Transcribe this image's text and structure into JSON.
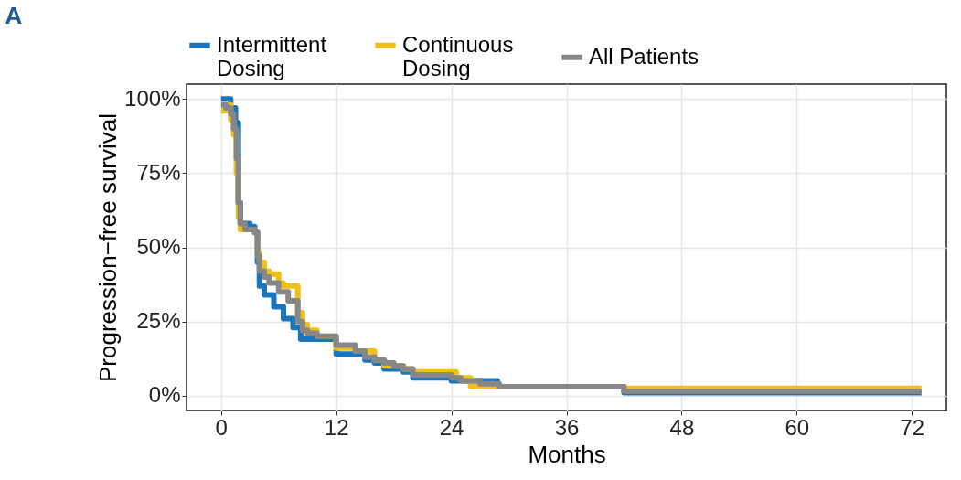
{
  "chart_data": {
    "type": "step",
    "title": "A",
    "xlabel": "Months",
    "ylabel": "Progression−free survival",
    "legend": "top",
    "grid": true,
    "line_style": "solid",
    "xlim": [
      -3.6,
      75.6
    ],
    "xticks": [
      0,
      12,
      24,
      36,
      48,
      60,
      72
    ],
    "ylim": [
      -5,
      105
    ],
    "yticks": [
      {
        "value": 0,
        "label": "0%"
      },
      {
        "value": 25,
        "label": "25%"
      },
      {
        "value": 50,
        "label": "50%"
      },
      {
        "value": 75,
        "label": "75%"
      },
      {
        "value": 100,
        "label": "100%"
      }
    ],
    "series": [
      {
        "name": "Intermittent\nDosing",
        "color": "#1a75bc",
        "x": [
          0,
          1,
          1.5,
          1.8,
          2,
          3,
          3.5,
          3.8,
          4,
          4.5,
          5.5,
          6.5,
          7.5,
          8.3,
          12,
          15,
          16,
          17,
          19,
          20,
          24,
          28.8,
          42,
          73
        ],
        "values": [
          100,
          97,
          92,
          65,
          58,
          57,
          55,
          45,
          37,
          34,
          30,
          26,
          23,
          19,
          14,
          12,
          11,
          9,
          8,
          6,
          5,
          3,
          1,
          1
        ]
      },
      {
        "name": "Continuous\nDosing",
        "color": "#f0c01a",
        "x": [
          0,
          0.5,
          1,
          1.3,
          1.6,
          1.8,
          2,
          3,
          3.5,
          3.8,
          4,
          4.5,
          5,
          6,
          6.5,
          7.5,
          8,
          8.5,
          9,
          10,
          12,
          14,
          16,
          17,
          19,
          20,
          24.5,
          26,
          42,
          73
        ],
        "values": [
          96,
          98,
          93,
          88,
          75,
          60,
          56,
          56,
          55,
          48,
          45,
          42,
          41,
          38,
          37,
          37,
          28,
          24,
          22,
          20,
          16,
          15,
          12,
          10,
          9,
          8,
          6,
          3,
          2.5,
          2.5
        ]
      },
      {
        "name": "All Patients",
        "color": "#878787",
        "x": [
          0,
          0.5,
          1,
          1.3,
          1.6,
          1.8,
          2,
          2.5,
          3.5,
          3.8,
          4,
          4.5,
          5,
          6,
          7,
          8,
          8.5,
          9,
          10,
          12,
          14,
          15,
          16,
          17,
          18,
          19,
          20,
          24,
          25,
          27,
          29,
          42,
          73
        ],
        "values": [
          98,
          97,
          95,
          90,
          80,
          65,
          58,
          56,
          55,
          47,
          42,
          40,
          38,
          35,
          32,
          25,
          22,
          21,
          20,
          17,
          15,
          13,
          12,
          11,
          10,
          9,
          7,
          6,
          5,
          4,
          3,
          1.5,
          1.5
        ]
      }
    ]
  }
}
